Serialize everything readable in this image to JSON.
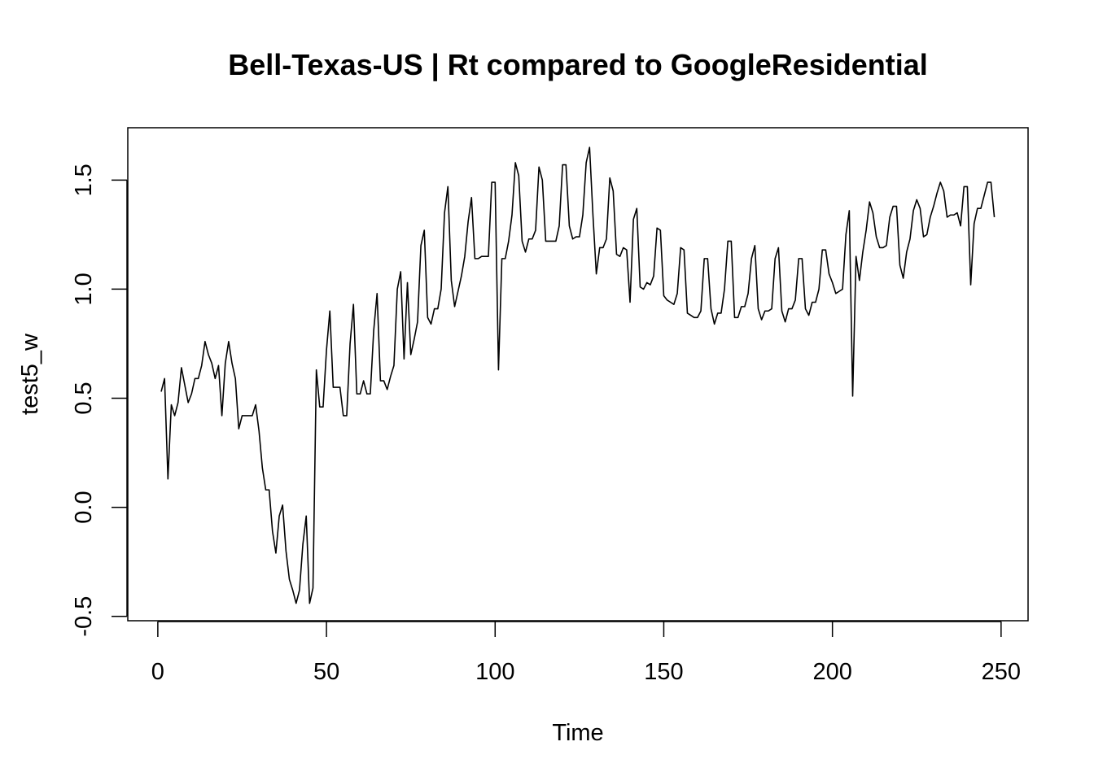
{
  "chart_data": {
    "type": "line",
    "title": "Bell-Texas-US | Rt compared to GoogleResidential",
    "xlabel": "Time",
    "ylabel": "test5_w",
    "xlim": [
      -8.9,
      258
    ],
    "ylim": [
      -0.52,
      1.74
    ],
    "x_ticks": [
      0,
      50,
      100,
      150,
      200,
      250
    ],
    "y_ticks": [
      -0.5,
      0.0,
      0.5,
      1.0,
      1.5
    ],
    "x_tick_labels": [
      "0",
      "50",
      "100",
      "150",
      "200",
      "250"
    ],
    "y_tick_labels": [
      "-0.5",
      "0.0",
      "0.5",
      "1.0",
      "1.5"
    ],
    "grid": false,
    "legend": "none",
    "series": [
      {
        "color": "#000000",
        "x_start": 1,
        "values": [
          0.53,
          0.59,
          0.13,
          0.47,
          0.42,
          0.48,
          0.64,
          0.56,
          0.48,
          0.52,
          0.59,
          0.59,
          0.65,
          0.76,
          0.7,
          0.66,
          0.59,
          0.65,
          0.42,
          0.66,
          0.76,
          0.66,
          0.59,
          0.36,
          0.42,
          0.42,
          0.42,
          0.42,
          0.47,
          0.35,
          0.18,
          0.08,
          0.08,
          -0.11,
          -0.21,
          -0.04,
          0.01,
          -0.2,
          -0.33,
          -0.38,
          -0.44,
          -0.38,
          -0.17,
          -0.04,
          -0.44,
          -0.37,
          0.63,
          0.46,
          0.46,
          0.72,
          0.9,
          0.55,
          0.55,
          0.55,
          0.42,
          0.42,
          0.75,
          0.93,
          0.52,
          0.52,
          0.58,
          0.52,
          0.52,
          0.81,
          0.98,
          0.58,
          0.58,
          0.54,
          0.6,
          0.65,
          1.0,
          1.08,
          0.68,
          1.03,
          0.7,
          0.77,
          0.85,
          1.2,
          1.27,
          0.87,
          0.84,
          0.91,
          0.91,
          1.0,
          1.35,
          1.47,
          1.04,
          0.92,
          0.99,
          1.06,
          1.15,
          1.31,
          1.42,
          1.14,
          1.14,
          1.15,
          1.15,
          1.15,
          1.49,
          1.49,
          0.63,
          1.14,
          1.14,
          1.22,
          1.34,
          1.58,
          1.52,
          1.22,
          1.17,
          1.23,
          1.23,
          1.27,
          1.56,
          1.5,
          1.22,
          1.22,
          1.22,
          1.22,
          1.29,
          1.57,
          1.57,
          1.29,
          1.23,
          1.24,
          1.24,
          1.34,
          1.58,
          1.65,
          1.34,
          1.07,
          1.19,
          1.19,
          1.23,
          1.51,
          1.45,
          1.16,
          1.15,
          1.19,
          1.18,
          0.94,
          1.32,
          1.37,
          1.01,
          1.0,
          1.03,
          1.02,
          1.06,
          1.28,
          1.27,
          0.97,
          0.95,
          0.94,
          0.93,
          0.98,
          1.19,
          1.18,
          0.89,
          0.88,
          0.87,
          0.87,
          0.9,
          1.14,
          1.14,
          0.91,
          0.84,
          0.89,
          0.89,
          1.0,
          1.22,
          1.22,
          0.87,
          0.87,
          0.92,
          0.92,
          0.98,
          1.14,
          1.2,
          0.91,
          0.86,
          0.9,
          0.9,
          0.91,
          1.14,
          1.19,
          0.9,
          0.85,
          0.91,
          0.91,
          0.95,
          1.14,
          1.14,
          0.91,
          0.88,
          0.94,
          0.94,
          1.0,
          1.18,
          1.18,
          1.07,
          1.03,
          0.98,
          0.99,
          1.0,
          1.25,
          1.36,
          0.51,
          1.15,
          1.04,
          1.17,
          1.27,
          1.4,
          1.35,
          1.24,
          1.19,
          1.19,
          1.2,
          1.33,
          1.38,
          1.38,
          1.11,
          1.05,
          1.17,
          1.23,
          1.36,
          1.41,
          1.37,
          1.24,
          1.25,
          1.33,
          1.38,
          1.44,
          1.49,
          1.45,
          1.33,
          1.34,
          1.34,
          1.35,
          1.29,
          1.47,
          1.47,
          1.02,
          1.3,
          1.37,
          1.37,
          1.43,
          1.49,
          1.49,
          1.33
        ]
      }
    ]
  }
}
